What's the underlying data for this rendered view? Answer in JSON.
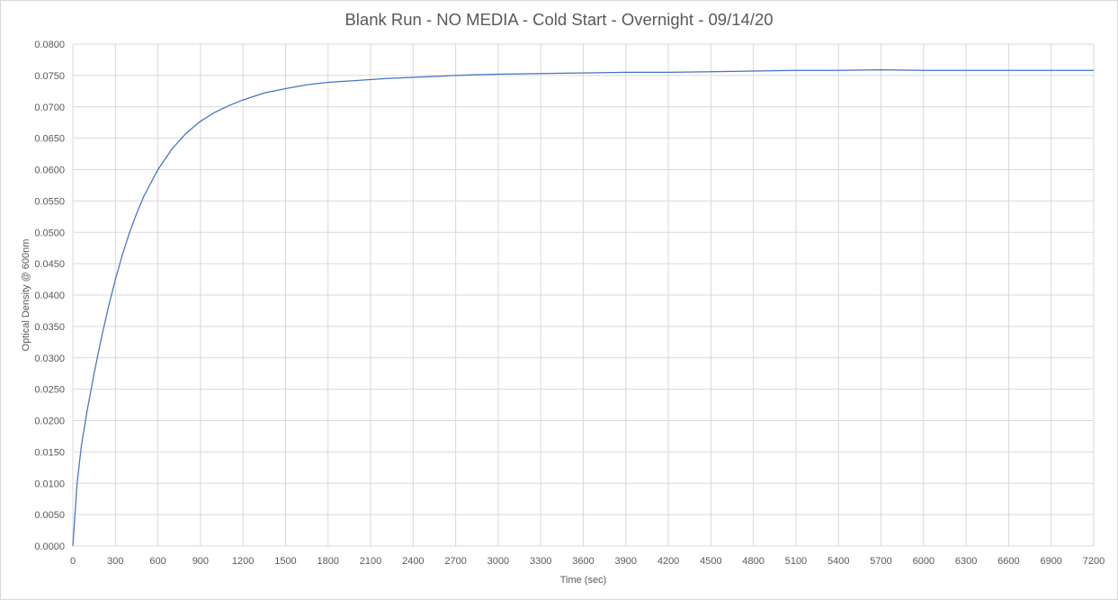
{
  "chart_data": {
    "type": "line",
    "title": "Blank Run - NO MEDIA - Cold Start - Overnight - 09/14/20",
    "xlabel": "Time (sec)",
    "ylabel": "Optical Density @ 600nm",
    "xlim": [
      0,
      7200
    ],
    "ylim": [
      0,
      0.08
    ],
    "x_ticks": [
      "0",
      "300",
      "600",
      "900",
      "1200",
      "1500",
      "1800",
      "2100",
      "2400",
      "2700",
      "3000",
      "3300",
      "3600",
      "3900",
      "4200",
      "4500",
      "4800",
      "5100",
      "5400",
      "5700",
      "6000",
      "6300",
      "6600",
      "6900",
      "7200"
    ],
    "y_ticks": [
      "0.0000",
      "0.0050",
      "0.0100",
      "0.0150",
      "0.0200",
      "0.0250",
      "0.0300",
      "0.0350",
      "0.0400",
      "0.0450",
      "0.0500",
      "0.0550",
      "0.0600",
      "0.0650",
      "0.0700",
      "0.0750",
      "0.0800"
    ],
    "grid": true,
    "legend": "none",
    "series": [
      {
        "color": "#4472c4",
        "x": [
          0,
          30,
          60,
          100,
          150,
          200,
          250,
          300,
          350,
          400,
          450,
          500,
          600,
          700,
          800,
          900,
          1000,
          1100,
          1200,
          1350,
          1500,
          1650,
          1800,
          2000,
          2200,
          2400,
          2600,
          2800,
          3000,
          3300,
          3600,
          3900,
          4200,
          4500,
          4800,
          5100,
          5400,
          5700,
          6000,
          6300,
          6600,
          6900,
          7200
        ],
        "y": [
          0.0,
          0.01,
          0.016,
          0.0215,
          0.0275,
          0.033,
          0.038,
          0.0425,
          0.0465,
          0.05,
          0.053,
          0.0557,
          0.06,
          0.0633,
          0.0658,
          0.0677,
          0.0691,
          0.0702,
          0.0711,
          0.0722,
          0.0729,
          0.0735,
          0.0739,
          0.0742,
          0.0745,
          0.0747,
          0.0749,
          0.0751,
          0.0752,
          0.0753,
          0.0754,
          0.0755,
          0.0755,
          0.0756,
          0.0757,
          0.0758,
          0.0758,
          0.0759,
          0.0758,
          0.0758,
          0.0758,
          0.0758,
          0.0758
        ]
      }
    ]
  }
}
